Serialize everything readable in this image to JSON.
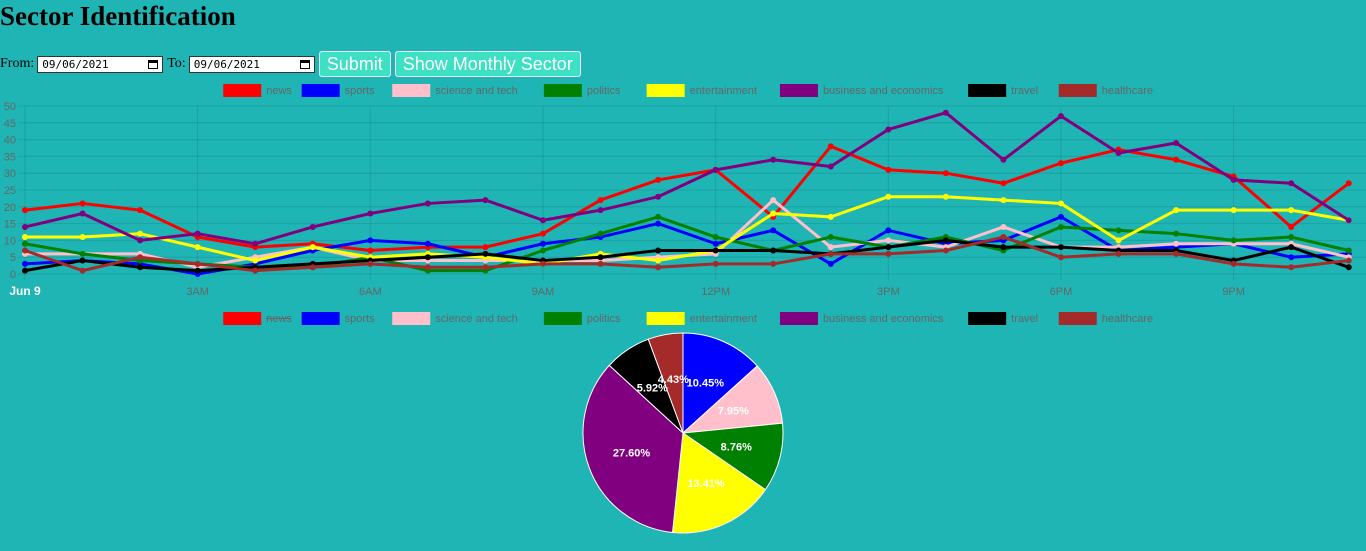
{
  "page": {
    "title": "Sector Identification"
  },
  "controls": {
    "from_label": "From:",
    "from_value": "09/06/2021",
    "to_label": "To:",
    "to_value": "09/06/2021",
    "submit_label": "Submit",
    "monthly_label": "Show Monthly Sector"
  },
  "chart_data": [
    {
      "type": "line",
      "legend_position": "top",
      "grid": true,
      "ylim": [
        0,
        50
      ],
      "yticks": [
        0,
        5,
        10,
        15,
        20,
        25,
        30,
        35,
        40,
        45,
        50
      ],
      "xlim": [
        0,
        23.3
      ],
      "xticks": [
        {
          "x": 0,
          "label": "Jun 9",
          "major": true
        },
        {
          "x": 3,
          "label": "3AM"
        },
        {
          "x": 6,
          "label": "6AM"
        },
        {
          "x": 9,
          "label": "9AM"
        },
        {
          "x": 12,
          "label": "12PM"
        },
        {
          "x": 15,
          "label": "3PM"
        },
        {
          "x": 18,
          "label": "6PM"
        },
        {
          "x": 21,
          "label": "9PM"
        }
      ],
      "x": [
        0,
        1,
        2,
        3,
        4,
        5,
        6,
        7,
        8,
        9,
        10,
        11,
        12,
        13,
        14,
        15,
        16,
        17,
        18,
        19,
        20,
        21,
        22,
        23
      ],
      "series": [
        {
          "name": "news",
          "color": "#ff0000",
          "values": [
            19,
            21,
            19,
            11,
            8,
            9,
            7,
            8,
            8,
            12,
            22,
            28,
            31,
            17,
            38,
            31,
            30,
            27,
            33,
            37,
            34,
            29,
            14,
            27
          ]
        },
        {
          "name": "sports",
          "color": "#0000ff",
          "values": [
            3,
            4,
            3,
            0,
            3,
            7,
            10,
            9,
            5,
            9,
            11,
            15,
            9,
            13,
            3,
            13,
            9,
            10,
            17,
            7,
            8,
            9,
            5,
            6
          ]
        },
        {
          "name": "science and tech",
          "color": "#ffc0cb",
          "values": [
            6,
            6,
            6,
            2,
            5,
            8,
            4,
            4,
            4,
            4,
            4,
            5,
            6,
            22,
            8,
            10,
            8,
            14,
            8,
            8,
            9,
            9,
            9,
            5
          ]
        },
        {
          "name": "politics",
          "color": "#008000",
          "values": [
            9,
            6,
            4,
            3,
            2,
            2,
            5,
            1,
            1,
            7,
            12,
            17,
            11,
            7,
            11,
            8,
            11,
            7,
            14,
            13,
            12,
            10,
            11,
            7
          ]
        },
        {
          "name": "entertainment",
          "color": "#ffff00",
          "values": [
            11,
            11,
            12,
            8,
            4,
            8,
            5,
            6,
            5,
            3,
            6,
            4,
            7,
            18,
            17,
            23,
            23,
            22,
            21,
            10,
            19,
            19,
            19,
            16
          ]
        },
        {
          "name": "business and economics",
          "color": "#800080",
          "values": [
            14,
            18,
            10,
            12,
            9,
            14,
            18,
            21,
            22,
            16,
            19,
            23,
            31,
            34,
            32,
            43,
            48,
            34,
            47,
            36,
            39,
            28,
            27,
            16
          ]
        },
        {
          "name": "travel",
          "color": "#000000",
          "values": [
            1,
            4,
            2,
            1,
            2,
            3,
            4,
            5,
            6,
            4,
            5,
            7,
            7,
            7,
            6,
            8,
            10,
            8,
            8,
            7,
            7,
            4,
            8,
            2
          ]
        },
        {
          "name": "healthcare",
          "color": "#a52a2a",
          "values": [
            7,
            1,
            5,
            3,
            1,
            2,
            3,
            2,
            2,
            3,
            3,
            2,
            3,
            3,
            6,
            6,
            7,
            11,
            5,
            6,
            6,
            3,
            2,
            4
          ]
        }
      ]
    },
    {
      "type": "pie",
      "legend_position": "top",
      "hidden_series": [
        "news"
      ],
      "slices": [
        {
          "name": "news",
          "value": 0,
          "color": "#ff0000"
        },
        {
          "name": "sports",
          "value": 10.45,
          "label": "10.45%",
          "color": "#0000ff"
        },
        {
          "name": "science and tech",
          "value": 7.95,
          "label": "7.95%",
          "color": "#ffc0cb"
        },
        {
          "name": "politics",
          "value": 8.76,
          "label": "8.76%",
          "color": "#008000"
        },
        {
          "name": "entertainment",
          "value": 13.41,
          "label": "13.41%",
          "color": "#ffff00"
        },
        {
          "name": "business and economics",
          "value": 27.6,
          "label": "27.60%",
          "color": "#800080"
        },
        {
          "name": "travel",
          "value": 5.92,
          "label": "5.92%",
          "color": "#000000"
        },
        {
          "name": "healthcare",
          "value": 4.43,
          "label": "4.43%",
          "color": "#a52a2a"
        }
      ]
    }
  ]
}
